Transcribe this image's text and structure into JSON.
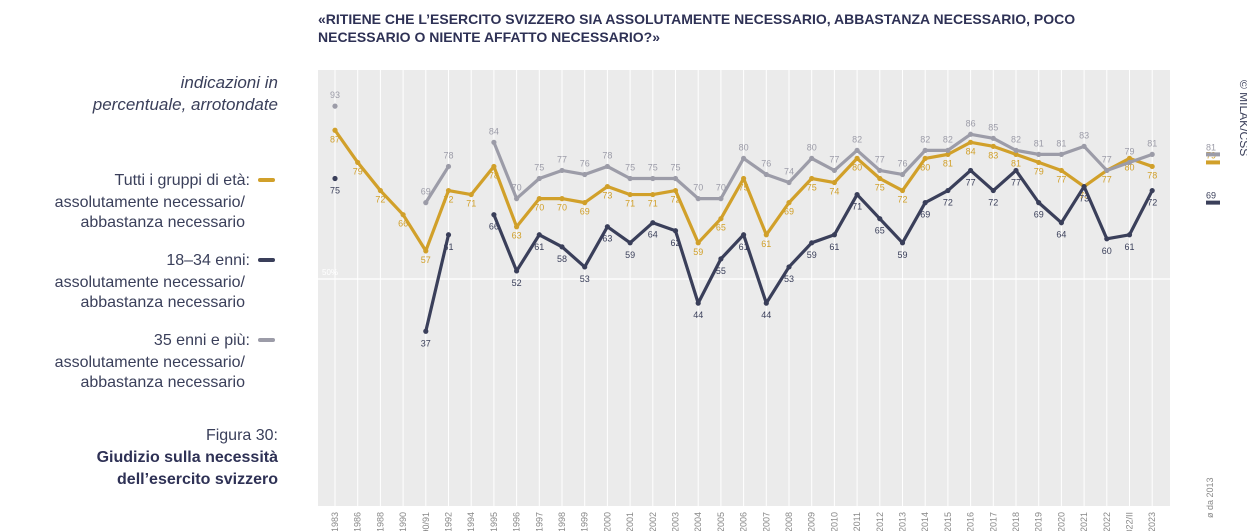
{
  "chart_data": {
    "type": "line",
    "title": "«RITIENE CHE L’ESERCITO SVIZZERO SIA ASSOLUTAMENTE NECESSARIO, ABBASTANZA NECESSARIO, POCO NECESSARIO O NIENTE AFFATTO NECESSARIO?»",
    "subtitle": "indicazioni in percentuale, arrotondate",
    "figure_label": "Figura 30:",
    "figure_title": "Giudizio sulla necessità dell’esercito svizzero",
    "credit": "© MILAK/CSS",
    "average_label": "ø da 2013",
    "categories": [
      "1983",
      "1986",
      "1988",
      "1990",
      "1990/91",
      "1992",
      "1994",
      "1995",
      "1996",
      "1997",
      "1998",
      "1999",
      "2000",
      "2001",
      "2002",
      "2003",
      "2004",
      "2005",
      "2006",
      "2007",
      "2008",
      "2009",
      "2010",
      "2011",
      "2012",
      "2013",
      "2014",
      "2015",
      "2016",
      "2017",
      "2018",
      "2019",
      "2020",
      "2021",
      "2022",
      "2022/II",
      "2023"
    ],
    "series": [
      {
        "name": "Tutti i gruppi di età:",
        "note": "assolutamente necessario/ abbastanza necessario",
        "color": "#d1a02a",
        "values": [
          87,
          79,
          72,
          66,
          57,
          72,
          71,
          78,
          63,
          70,
          70,
          69,
          73,
          71,
          71,
          72,
          59,
          65,
          75,
          61,
          69,
          75,
          74,
          80,
          75,
          72,
          80,
          81,
          84,
          83,
          81,
          79,
          77,
          73,
          77,
          80,
          78
        ],
        "average": 79
      },
      {
        "name": "18–34 enni:",
        "note": "assolutamente necessario/ abbastanza necessario",
        "color": "#3a3f5a",
        "values": [
          75,
          null,
          null,
          null,
          37,
          61,
          null,
          66,
          52,
          61,
          58,
          53,
          63,
          59,
          64,
          62,
          44,
          55,
          61,
          44,
          53,
          59,
          61,
          71,
          65,
          59,
          69,
          72,
          77,
          72,
          77,
          69,
          64,
          73,
          60,
          61,
          72
        ],
        "average": 69
      },
      {
        "name": "35 enni e più:",
        "note": "assolutamente necessario/ abbastanza necessario",
        "color": "#9c9ca8",
        "values": [
          93,
          null,
          null,
          null,
          69,
          78,
          null,
          84,
          70,
          75,
          77,
          76,
          78,
          75,
          75,
          75,
          70,
          70,
          80,
          76,
          74,
          80,
          77,
          82,
          77,
          76,
          82,
          82,
          86,
          85,
          82,
          81,
          81,
          83,
          77,
          79,
          81
        ],
        "average": 81
      }
    ],
    "ylim": [
      0,
      100
    ],
    "yticks": [
      {
        "value": 50,
        "label": "50%"
      }
    ],
    "grid": true
  }
}
